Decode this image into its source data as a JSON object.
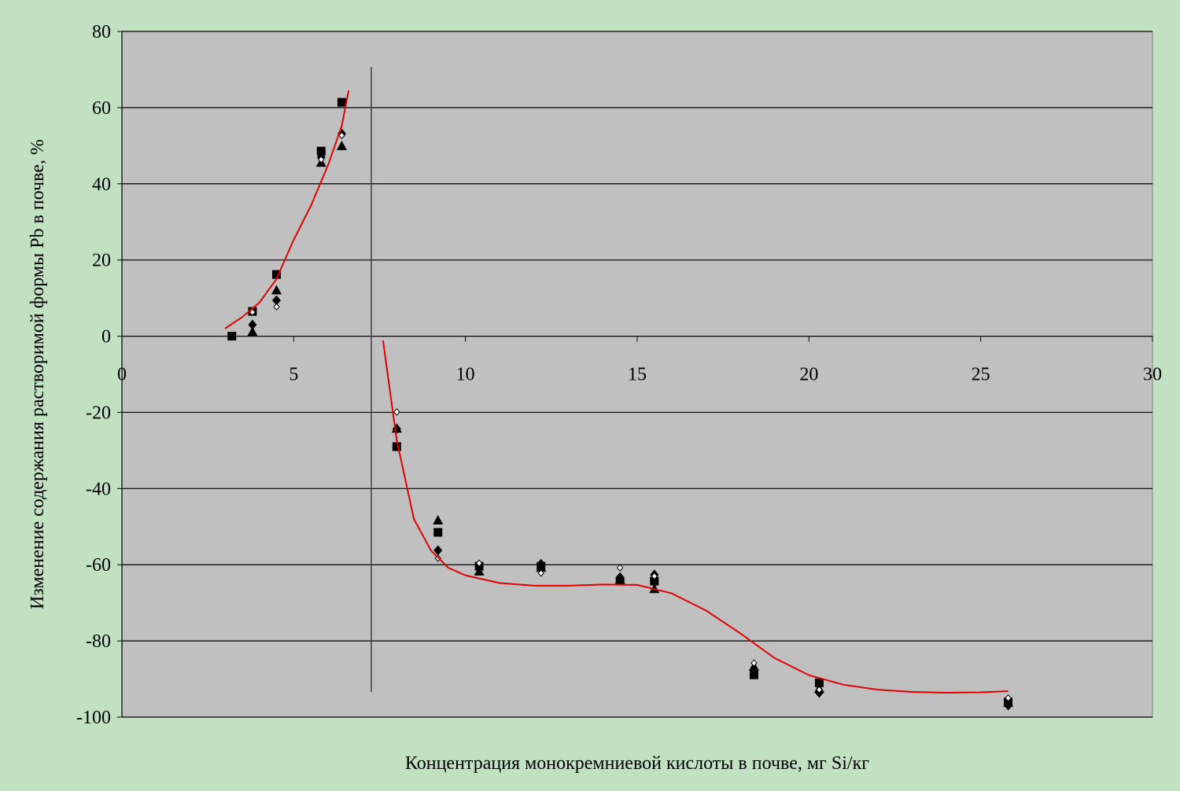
{
  "chart_data": {
    "type": "scatter",
    "x_label": "Концентрация монокремниевой кислоты в почве, мг Si/кг",
    "y_label": "Изменение содержания растворимой формы Pb в почве, %",
    "xlim": [
      0,
      30
    ],
    "xticks": [
      0,
      5,
      10,
      15,
      20,
      25,
      30
    ],
    "ylim": [
      -100,
      80
    ],
    "yticks": [
      -100,
      -80,
      -60,
      -40,
      -20,
      0,
      20,
      40,
      60,
      80
    ],
    "grid": true,
    "series": [
      {
        "marker": "square",
        "color": "#000000",
        "x": [
          3.2,
          3.8,
          4.5,
          5.8,
          6.4,
          8.0,
          9.2,
          10.4,
          12.2,
          14.5,
          15.5,
          18.4,
          20.3,
          25.8
        ],
        "values": [
          0,
          6.5,
          16.2,
          48.6,
          61.4,
          -29,
          -51.5,
          -60.4,
          -60.4,
          -64.3,
          -64.3,
          -88.9,
          -91,
          -96
        ]
      },
      {
        "marker": "diamond",
        "color": "#000000",
        "x": [
          3.8,
          4.5,
          5.8,
          6.4,
          8.0,
          9.2,
          10.4,
          12.2,
          14.5,
          15.5,
          18.4,
          20.3,
          25.8
        ],
        "values": [
          3,
          9.4,
          47,
          53.2,
          -24.3,
          -56.2,
          -60,
          -59.8,
          -63.3,
          -62.6,
          -87.8,
          -93.6,
          -96.9
        ]
      },
      {
        "marker": "triangle",
        "color": "#000000",
        "x": [
          3.8,
          4.5,
          5.8,
          6.4,
          8.0,
          9.2,
          10.4,
          12.2,
          14.5,
          15.5,
          18.4,
          20.3,
          25.8
        ],
        "values": [
          1.1,
          12,
          45.5,
          49.9,
          -24.3,
          -48.4,
          -61.8,
          -60.8,
          -63.9,
          -66.4,
          -86.8,
          -92.6,
          -96.3
        ]
      },
      {
        "marker": "diamond-open",
        "color": "#000000",
        "x": [
          3.8,
          4.5,
          5.8,
          6.4,
          8.0,
          9.2,
          10.4,
          12.2,
          14.5,
          15.5,
          18.4,
          20.3,
          25.8
        ],
        "values": [
          6.3,
          7.7,
          46.4,
          52.7,
          -19.9,
          -58.3,
          -59.6,
          -62.2,
          -60.8,
          -63,
          -85.8,
          -92.8,
          -95
        ]
      },
      {
        "marker": "line",
        "color": "#e00000",
        "x": [
          3.0,
          3.5,
          4.0,
          4.5,
          5.0,
          5.5,
          6.0,
          6.4,
          6.6,
          null,
          7.6,
          8.0,
          8.5,
          9.0,
          9.5,
          10,
          11,
          12,
          13,
          14,
          15,
          16,
          17,
          18,
          19,
          20,
          21,
          22,
          23,
          24,
          25,
          25.8
        ],
        "values": [
          2,
          5,
          8.8,
          15,
          25.3,
          34.2,
          44.9,
          55.2,
          64.5,
          null,
          -1.1,
          -27.3,
          -48,
          -56.3,
          -60.8,
          -62.8,
          -64.8,
          -65.5,
          -65.5,
          -65.2,
          -65.3,
          -67.5,
          -72,
          -78,
          -84.5,
          -89,
          -91.5,
          -92.8,
          -93.4,
          -93.6,
          -93.5,
          -93.2
        ]
      }
    ]
  }
}
